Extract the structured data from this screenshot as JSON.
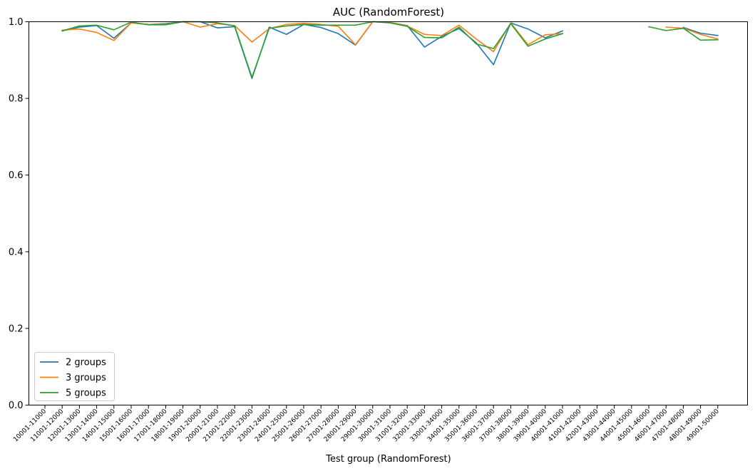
{
  "chart_data": {
    "type": "line",
    "title": "AUC (RandomForest)",
    "xlabel": "Test group (RandomForest)",
    "ylabel": "",
    "ylim": [
      0.0,
      1.0
    ],
    "yticks": [
      "0.0",
      "0.2",
      "0.4",
      "0.6",
      "0.8",
      "1.0"
    ],
    "ytick_values": [
      0.0,
      0.2,
      0.4,
      0.6,
      0.8,
      1.0
    ],
    "grid": false,
    "legend_position": "lower-left",
    "categories": [
      "10001-11000",
      "11001-12000",
      "12001-13000",
      "13001-14000",
      "14001-15000",
      "15001-16000",
      "16001-17000",
      "17001-18000",
      "18001-19000",
      "19001-20000",
      "20001-21000",
      "21001-22000",
      "22001-23000",
      "23001-24000",
      "24001-25000",
      "25001-26000",
      "26001-27000",
      "27001-28000",
      "28001-29000",
      "29001-30000",
      "30001-31000",
      "31001-32000",
      "32001-33000",
      "33001-34000",
      "34001-35000",
      "35001-36000",
      "36001-37000",
      "37001-38000",
      "38001-39000",
      "39001-40000",
      "40001-41000",
      "41001-42000",
      "42001-43000",
      "43001-44000",
      "44001-45000",
      "45001-46000",
      "46001-47000",
      "47001-48000",
      "48001-49000",
      "49001-50000"
    ],
    "series": [
      {
        "name": "2 groups",
        "color": "#1f77b4",
        "values": [
          null,
          0.976,
          0.986,
          0.99,
          0.957,
          0.997,
          0.993,
          0.995,
          1.0,
          1.0,
          0.984,
          0.987,
          0.852,
          0.986,
          0.967,
          0.993,
          0.985,
          0.969,
          0.939,
          1.0,
          0.998,
          0.99,
          0.934,
          0.962,
          0.982,
          0.945,
          0.888,
          0.997,
          0.981,
          0.958,
          0.976,
          null,
          null,
          null,
          null,
          null,
          null,
          0.985,
          0.97,
          0.964
        ]
      },
      {
        "name": "3 groups",
        "color": "#ff7f0e",
        "values": [
          null,
          0.978,
          0.981,
          0.972,
          0.951,
          0.997,
          0.993,
          0.993,
          1.0,
          0.986,
          0.995,
          0.99,
          0.947,
          0.982,
          0.993,
          0.996,
          0.993,
          0.988,
          0.94,
          1.0,
          0.998,
          0.989,
          0.967,
          0.964,
          0.991,
          0.955,
          0.922,
          0.997,
          0.94,
          0.966,
          0.969,
          null,
          null,
          null,
          null,
          null,
          0.986,
          0.983,
          0.967,
          0.955
        ]
      },
      {
        "name": "5 groups",
        "color": "#2ca02c",
        "values": [
          null,
          0.976,
          0.989,
          0.991,
          0.979,
          0.999,
          0.992,
          0.992,
          1.0,
          1.0,
          0.997,
          0.989,
          0.855,
          0.983,
          0.989,
          0.993,
          0.991,
          0.991,
          0.991,
          1.0,
          0.997,
          0.988,
          0.959,
          0.958,
          0.986,
          0.942,
          0.93,
          0.995,
          0.936,
          0.955,
          0.969,
          null,
          null,
          null,
          null,
          0.987,
          0.977,
          0.983,
          0.952,
          0.953
        ]
      }
    ]
  }
}
